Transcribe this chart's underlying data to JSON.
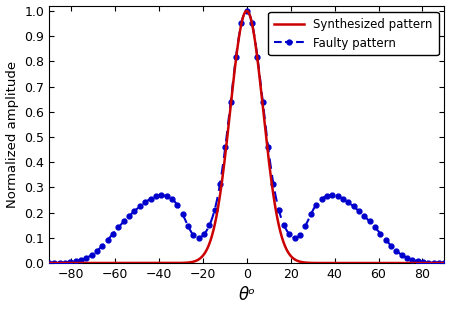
{
  "title": "",
  "xlabel": "θᵒ",
  "ylabel": "Normalized amplitude",
  "xlim": [
    -90,
    90
  ],
  "ylim": [
    0,
    1.02
  ],
  "xticks": [
    -80,
    -60,
    -40,
    -20,
    0,
    20,
    40,
    60,
    80
  ],
  "yticks": [
    0,
    0.1,
    0.2,
    0.3,
    0.4,
    0.5,
    0.6,
    0.7,
    0.8,
    0.9,
    1
  ],
  "synthesized_color": "#cc0000",
  "faulty_color": "#0000cc",
  "legend_entries": [
    "Synthesized pattern",
    "Faulty pattern"
  ],
  "fig_width": 4.5,
  "fig_height": 3.1,
  "dpi": 100
}
